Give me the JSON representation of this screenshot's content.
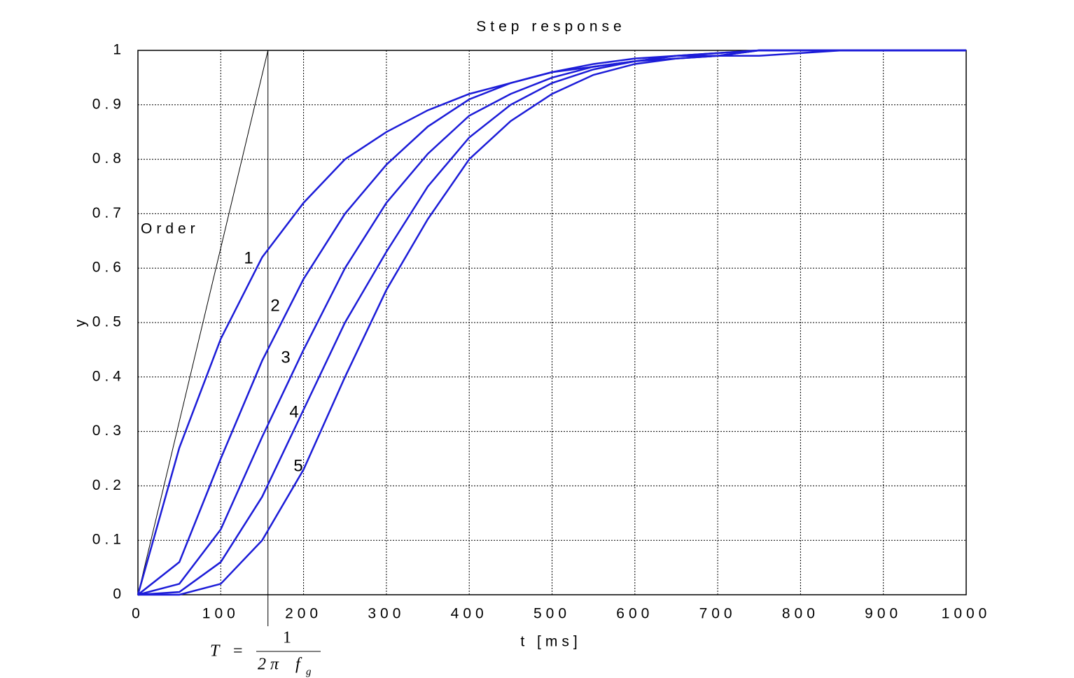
{
  "chart_data": {
    "type": "line",
    "title": "Step response",
    "x_label": "t [ms]",
    "y_label": "y",
    "x": [
      0,
      50,
      100,
      150,
      200,
      250,
      300,
      350,
      400,
      450,
      500,
      550,
      600,
      650,
      700,
      750,
      800,
      850,
      900,
      950,
      1000
    ],
    "series": [
      {
        "name": "1",
        "color": "#1c1cd8",
        "values": [
          0,
          0.27,
          0.47,
          0.62,
          0.72,
          0.8,
          0.85,
          0.89,
          0.92,
          0.94,
          0.96,
          0.97,
          0.98,
          0.985,
          0.99,
          0.99,
          0.995,
          1,
          1,
          1,
          1
        ]
      },
      {
        "name": "2",
        "color": "#1c1cd8",
        "values": [
          0,
          0.06,
          0.25,
          0.43,
          0.58,
          0.7,
          0.79,
          0.86,
          0.91,
          0.94,
          0.96,
          0.975,
          0.985,
          0.99,
          0.995,
          1,
          1,
          1,
          1,
          1,
          1
        ]
      },
      {
        "name": "3",
        "color": "#1c1cd8",
        "values": [
          0,
          0.02,
          0.12,
          0.29,
          0.45,
          0.6,
          0.72,
          0.81,
          0.88,
          0.92,
          0.95,
          0.97,
          0.98,
          0.99,
          0.995,
          1,
          1,
          1,
          1,
          1,
          1
        ]
      },
      {
        "name": "4",
        "color": "#1c1cd8",
        "values": [
          0,
          0.005,
          0.06,
          0.18,
          0.34,
          0.5,
          0.63,
          0.75,
          0.84,
          0.9,
          0.94,
          0.965,
          0.98,
          0.99,
          0.99,
          1,
          1,
          1,
          1,
          1,
          1
        ]
      },
      {
        "name": "5",
        "color": "#1c1cd8",
        "values": [
          0,
          0,
          0.02,
          0.1,
          0.23,
          0.4,
          0.56,
          0.69,
          0.8,
          0.87,
          0.92,
          0.955,
          0.975,
          0.985,
          0.99,
          1,
          1,
          1,
          1,
          1,
          1
        ]
      }
    ],
    "legend_title": "Order",
    "time_constant": 157,
    "formula": {
      "lhs": "T",
      "eq": "=",
      "numerator": "1",
      "denominator": "2 π",
      "f": "f",
      "sub": "g"
    },
    "xlim": [
      0,
      1000
    ],
    "ylim": [
      0,
      1
    ],
    "xticks": [
      0,
      100,
      200,
      300,
      400,
      500,
      600,
      700,
      800,
      900,
      1000
    ],
    "yticks": [
      0,
      0.1,
      0.2,
      0.3,
      0.4,
      0.5,
      0.6,
      0.7,
      0.8,
      0.9,
      1
    ],
    "grid": true
  }
}
